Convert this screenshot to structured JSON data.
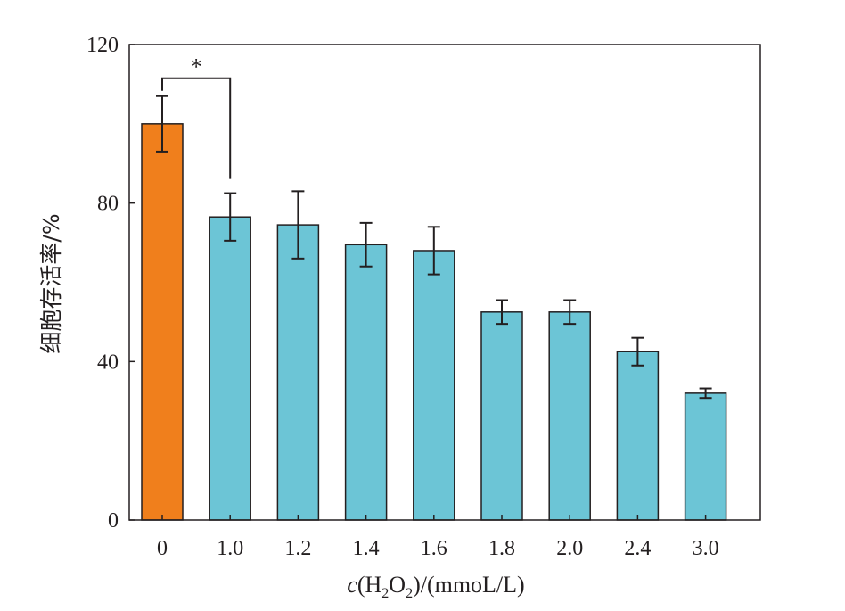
{
  "chart_data": {
    "type": "bar",
    "title": "",
    "xlabel": {
      "italic": "c",
      "open": "(H",
      "sub1": "2",
      "mid": "O",
      "sub2": "2",
      "rest": ")/(mmoL/L)"
    },
    "ylabel": "细胞存活率/%",
    "categories": [
      "0",
      "1.0",
      "1.2",
      "1.4",
      "1.6",
      "1.8",
      "2.0",
      "2.4",
      "3.0"
    ],
    "values": [
      100,
      76.5,
      74.5,
      69.5,
      68,
      52.5,
      52.5,
      42.5,
      32
    ],
    "errors": [
      7,
      6,
      8.5,
      5.5,
      6,
      3,
      3,
      3.5,
      1.2
    ],
    "colors": [
      "#f07f1c",
      "#6cc5d6",
      "#6cc5d6",
      "#6cc5d6",
      "#6cc5d6",
      "#6cc5d6",
      "#6cc5d6",
      "#6cc5d6",
      "#6cc5d6"
    ],
    "ylim": [
      0,
      120
    ],
    "yticks": [
      0,
      40,
      80,
      120
    ],
    "significance": {
      "from": 0,
      "to": 1,
      "label": "*"
    },
    "grid": false,
    "legend": "none"
  }
}
